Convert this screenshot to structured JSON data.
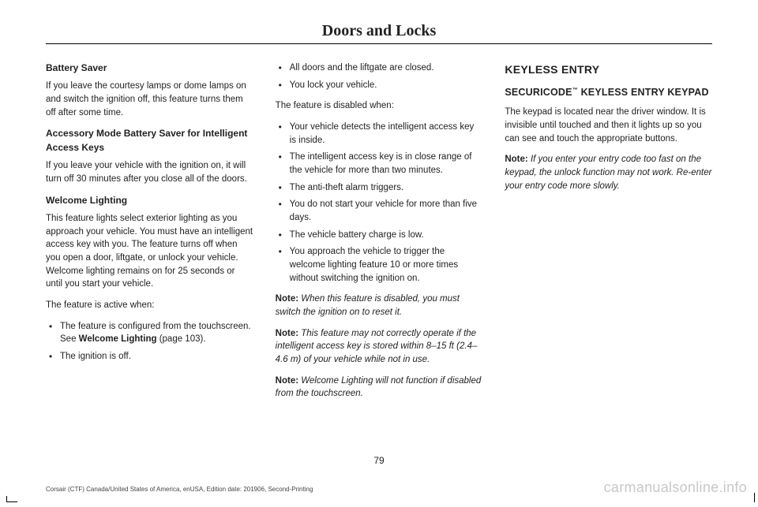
{
  "page_title": "Doors and Locks",
  "page_number": "79",
  "footer_left": "Corsair (CTF) Canada/United States of America, enUSA, Edition date: 201906, Second-Printing",
  "footer_right": "carmanualsonline.info",
  "col1": {
    "h1": "Battery Saver",
    "p1": "If you leave the courtesy lamps or dome lamps on and switch the ignition off, this feature turns them off after some time.",
    "h2": "Accessory Mode Battery Saver for Intelligent Access Keys",
    "p2": "If you leave your vehicle with the ignition on, it will turn off 30 minutes after you close all of the doors.",
    "h3": "Welcome Lighting",
    "p3": "This feature lights select exterior lighting as you approach your vehicle. You must have an intelligent access key with you. The feature turns off when you open a door, liftgate, or unlock your vehicle. Welcome lighting remains on for 25 seconds or until you start your vehicle.",
    "p4": "The feature is active when:",
    "b1a": "The feature is configured from the touchscreen. See ",
    "b1b": "Welcome Lighting",
    "b1c": " (page 103).",
    "b2": "The ignition is off."
  },
  "col2": {
    "b1": "All doors and the liftgate are closed.",
    "b2": "You lock your vehicle.",
    "p1": "The feature is disabled when:",
    "c1": "Your vehicle detects the intelligent access key is inside.",
    "c2": "The intelligent access key is in close range of the vehicle for more than two minutes.",
    "c3": "The anti-theft alarm triggers.",
    "c4": "You do not start your vehicle for more than five days.",
    "c5": "The vehicle battery charge is low.",
    "c6": "You approach the vehicle to trigger the welcome lighting feature 10 or more times without switching the ignition on.",
    "n1_lead": "Note: ",
    "n1": "When this feature is disabled, you must switch the ignition on to reset it.",
    "n2_lead": "Note: ",
    "n2": "This feature may not correctly operate if the intelligent access key is stored within 8–15 ft (2.4–4.6 m) of your vehicle while not in use.",
    "n3_lead": "Note: ",
    "n3": "Welcome Lighting will not function if disabled from the touchscreen."
  },
  "col3": {
    "h1": "KEYLESS ENTRY",
    "h2a": "SECURICODE",
    "h2b": " KEYLESS ENTRY KEYPAD",
    "p1": "The keypad is located near the driver window.  It is invisible until touched and then it lights up so you can see and touch the appropriate buttons.",
    "n1_lead": "Note: ",
    "n1": "If you enter your entry code too fast on the keypad, the unlock function may not work. Re-enter your entry code more slowly."
  }
}
